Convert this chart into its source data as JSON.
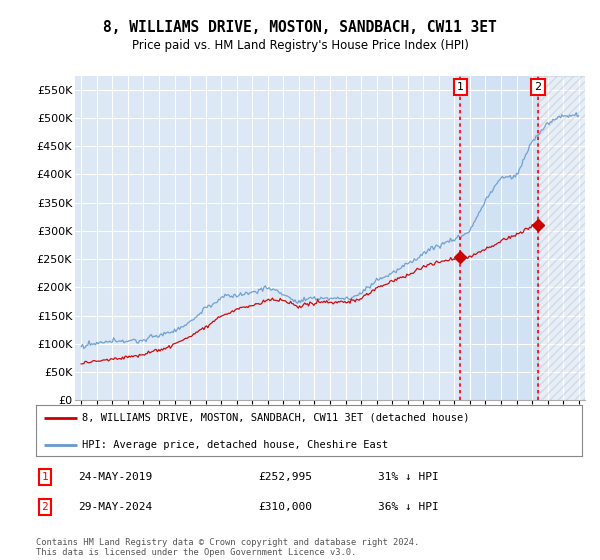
{
  "title": "8, WILLIAMS DRIVE, MOSTON, SANDBACH, CW11 3ET",
  "subtitle": "Price paid vs. HM Land Registry's House Price Index (HPI)",
  "ylim": [
    0,
    575000
  ],
  "yticks": [
    0,
    50000,
    100000,
    150000,
    200000,
    250000,
    300000,
    350000,
    400000,
    450000,
    500000,
    550000
  ],
  "ytick_labels": [
    "£0",
    "£50K",
    "£100K",
    "£150K",
    "£200K",
    "£250K",
    "£300K",
    "£350K",
    "£400K",
    "£450K",
    "£500K",
    "£550K"
  ],
  "background_color": "#ffffff",
  "plot_bg_color": "#dce8f5",
  "grid_color": "#ffffff",
  "hpi_color": "#6699cc",
  "price_color": "#cc0000",
  "m1x": 2019.38,
  "m2x": 2024.38,
  "marker1_price": 252995,
  "marker2_price": 310000,
  "legend_label_price": "8, WILLIAMS DRIVE, MOSTON, SANDBACH, CW11 3ET (detached house)",
  "legend_label_hpi": "HPI: Average price, detached house, Cheshire East",
  "annotation1": [
    "1",
    "24-MAY-2019",
    "£252,995",
    "31% ↓ HPI"
  ],
  "annotation2": [
    "2",
    "29-MAY-2024",
    "£310,000",
    "36% ↓ HPI"
  ],
  "copyright": "Contains HM Land Registry data © Crown copyright and database right 2024.\nThis data is licensed under the Open Government Licence v3.0.",
  "xmin": 1994.6,
  "xmax": 2027.4,
  "hpi_base_years": [
    1995,
    1996,
    1997,
    1998,
    1999,
    2000,
    2001,
    2002,
    2003,
    2004,
    2005,
    2006,
    2007,
    2008,
    2009,
    2010,
    2011,
    2012,
    2013,
    2014,
    2015,
    2016,
    2017,
    2018,
    2019,
    2020,
    2021,
    2022,
    2023,
    2024,
    2025,
    2026,
    2027
  ],
  "hpi_base_vals": [
    95000,
    97000,
    99000,
    103000,
    108000,
    115000,
    125000,
    140000,
    160000,
    178000,
    185000,
    192000,
    198000,
    188000,
    170000,
    178000,
    178000,
    177000,
    187000,
    210000,
    225000,
    242000,
    262000,
    278000,
    292000,
    305000,
    360000,
    395000,
    400000,
    460000,
    490000,
    505000,
    505000
  ],
  "price_base_years": [
    1995,
    1996,
    1997,
    1998,
    1999,
    2000,
    2001,
    2002,
    2003,
    2004,
    2005,
    2006,
    2007,
    2008,
    2009,
    2010,
    2011,
    2012,
    2013,
    2014,
    2015,
    2016,
    2017,
    2018,
    2019,
    2020,
    2021,
    2022,
    2023,
    2024
  ],
  "price_base_vals": [
    65000,
    68000,
    72000,
    76000,
    80000,
    87000,
    95000,
    110000,
    128000,
    148000,
    158000,
    165000,
    175000,
    172000,
    162000,
    170000,
    172000,
    173000,
    180000,
    198000,
    210000,
    220000,
    235000,
    245000,
    252995,
    256000,
    270000,
    285000,
    295000,
    310000
  ]
}
